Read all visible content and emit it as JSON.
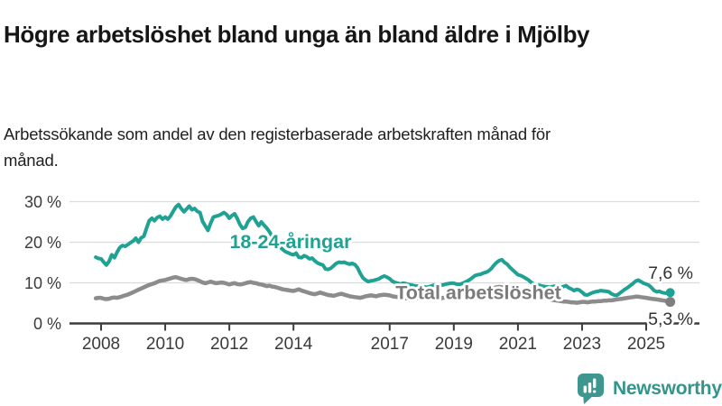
{
  "header": {
    "title": "Högre arbetslöshet bland unga än bland äldre i Mjölby",
    "subtitle": "Arbetssökande som andel av den registerbaserade arbetskraften månad för månad."
  },
  "footer": {
    "brand": "Newsworthy",
    "logo_icon": "bar-chart-speech-bubble-icon"
  },
  "colors": {
    "youth_series": "#1FA294",
    "total_series": "#8C8C8C",
    "total_label": "#7B7B7B",
    "grid": "#DBDBDB",
    "axis": "#3D3D3D",
    "tick_text": "#3A3A3A",
    "value_text": "#333333",
    "brand_teal": "#3E968E"
  },
  "chart_data": {
    "type": "line",
    "title": "Högre arbetslöshet bland unga än bland äldre i Mjölby",
    "subtitle": "Arbetssökande som andel av den registerbaserade arbetskraften månad för månad.",
    "unit": "%",
    "x_start": "2007-11",
    "x_end": "2025-10",
    "x_frequency": "monthly",
    "x_tick_years": [
      2008,
      2010,
      2012,
      2014,
      2017,
      2019,
      2021,
      2023,
      2025
    ],
    "y_tick_values": [
      0,
      10,
      20,
      30
    ],
    "y_tick_labels": [
      "0 %",
      "10 %",
      "20 %",
      "30 %"
    ],
    "ylim": [
      0,
      32
    ],
    "grid": "horizontal",
    "legend": "inline-labels",
    "series": [
      {
        "name": "18-24-åringar",
        "color": "#1FA294",
        "end_label": "7,6 %",
        "end_value": 7.6,
        "values": [
          16.3,
          16.0,
          15.9,
          15.1,
          14.4,
          15.3,
          16.9,
          16.2,
          17.6,
          18.7,
          19.2,
          19.0,
          19.4,
          19.9,
          20.3,
          21.0,
          20.0,
          21.1,
          21.5,
          23.4,
          25.3,
          25.9,
          25.3,
          26.1,
          26.4,
          25.7,
          26.2,
          25.7,
          26.5,
          27.6,
          28.7,
          29.3,
          28.3,
          27.5,
          28.2,
          28.9,
          28.0,
          28.3,
          27.6,
          27.3,
          25.1,
          24.0,
          22.9,
          24.7,
          26.2,
          26.4,
          26.6,
          26.9,
          27.3,
          26.8,
          25.9,
          26.6,
          27.0,
          25.8,
          24.3,
          23.4,
          23.7,
          25.1,
          25.9,
          26.2,
          25.1,
          24.1,
          25.0,
          24.2,
          23.5,
          22.6,
          21.5,
          20.4,
          19.5,
          18.8,
          18.2,
          17.7,
          17.4,
          17.1,
          16.9,
          17.3,
          16.3,
          16.2,
          16.7,
          16.4,
          15.9,
          16.1,
          15.4,
          14.9,
          14.6,
          14.4,
          13.4,
          13.3,
          13.6,
          14.2,
          14.8,
          15.1,
          15.0,
          15.1,
          14.8,
          14.6,
          14.8,
          14.5,
          13.7,
          12.3,
          11.2,
          10.7,
          10.3,
          10.5,
          10.6,
          10.8,
          11.0,
          11.4,
          11.7,
          11.4,
          11.0,
          10.4,
          10.1,
          9.9,
          9.7,
          9.9,
          9.8,
          9.6,
          9.5,
          9.3,
          9.2,
          9.2,
          9.1,
          9.0,
          8.9,
          9.1,
          9.3,
          9.5,
          9.6,
          9.4,
          9.5,
          9.7,
          9.8,
          9.9,
          9.9,
          9.7,
          9.6,
          9.8,
          10.1,
          10.4,
          10.8,
          11.3,
          11.8,
          12.0,
          12.1,
          12.4,
          12.6,
          12.9,
          13.5,
          14.3,
          15.0,
          15.5,
          15.7,
          15.0,
          14.6,
          13.8,
          13.2,
          12.6,
          12.0,
          11.8,
          11.5,
          11.1,
          10.7,
          10.1,
          9.7,
          9.5,
          9.4,
          9.2,
          9.1,
          9.0,
          8.9,
          9.1,
          9.2,
          9.0,
          8.9,
          9.1,
          9.3,
          8.8,
          8.5,
          8.1,
          8.4,
          8.2,
          7.7,
          7.1,
          7.0,
          7.3,
          7.6,
          7.8,
          7.9,
          8.1,
          8.0,
          7.9,
          7.8,
          7.3,
          7.0,
          6.9,
          7.4,
          7.9,
          8.4,
          8.8,
          9.3,
          9.8,
          10.4,
          10.7,
          10.3,
          9.9,
          9.7,
          9.4,
          8.8,
          8.1,
          7.8,
          7.9,
          7.6,
          7.5,
          7.4,
          7.6
        ]
      },
      {
        "name": "Total arbetslöshet",
        "color": "#8C8C8C",
        "end_label": "5,3 %",
        "end_value": 5.3,
        "values": [
          6.2,
          6.3,
          6.3,
          6.1,
          6.0,
          6.1,
          6.3,
          6.4,
          6.3,
          6.5,
          6.7,
          6.9,
          7.1,
          7.4,
          7.7,
          8.0,
          8.3,
          8.6,
          8.9,
          9.2,
          9.5,
          9.7,
          9.9,
          10.2,
          10.5,
          10.6,
          10.7,
          10.9,
          11.1,
          11.3,
          11.4,
          11.2,
          11.0,
          10.8,
          10.7,
          10.9,
          11.0,
          10.9,
          10.7,
          10.4,
          10.1,
          9.9,
          10.1,
          10.3,
          10.1,
          9.9,
          10.0,
          10.1,
          10.0,
          9.8,
          9.6,
          9.8,
          9.9,
          9.7,
          9.6,
          9.7,
          9.9,
          10.1,
          10.2,
          10.0,
          9.9,
          9.7,
          9.6,
          9.4,
          9.2,
          9.3,
          9.1,
          9.0,
          8.8,
          8.6,
          8.4,
          8.3,
          8.2,
          8.1,
          8.0,
          8.2,
          8.4,
          8.1,
          7.9,
          7.7,
          7.5,
          7.3,
          7.2,
          7.4,
          7.6,
          7.4,
          7.2,
          7.0,
          6.9,
          6.8,
          7.0,
          7.2,
          7.3,
          7.1,
          6.9,
          6.7,
          6.6,
          6.5,
          6.4,
          6.3,
          6.5,
          6.7,
          6.8,
          6.9,
          6.8,
          6.7,
          6.9,
          7.0,
          7.1,
          7.0,
          6.9,
          6.7,
          6.6,
          6.5,
          6.4,
          6.3,
          6.2,
          6.2,
          6.3,
          6.4,
          6.3,
          6.2,
          6.2,
          6.1,
          6.0,
          6.1,
          6.2,
          6.3,
          6.2,
          6.2,
          6.3,
          6.4,
          6.3,
          6.3,
          6.3,
          6.4,
          6.4,
          6.5,
          6.6,
          6.7,
          6.8,
          6.9,
          7.0,
          7.1,
          7.2,
          7.4,
          7.6,
          7.9,
          8.3,
          8.7,
          8.9,
          9.0,
          8.9,
          8.8,
          8.6,
          8.4,
          8.2,
          8.1,
          8.0,
          7.9,
          7.8,
          7.6,
          7.4,
          7.2,
          7.0,
          6.8,
          6.6,
          6.4,
          6.2,
          6.0,
          5.9,
          5.8,
          5.7,
          5.6,
          5.5,
          5.4,
          5.4,
          5.3,
          5.2,
          5.2,
          5.1,
          5.2,
          5.3,
          5.3,
          5.2,
          5.3,
          5.4,
          5.4,
          5.5,
          5.5,
          5.6,
          5.6,
          5.7,
          5.7,
          5.8,
          5.9,
          6.0,
          6.1,
          6.2,
          6.3,
          6.4,
          6.5,
          6.6,
          6.6,
          6.5,
          6.4,
          6.3,
          6.2,
          6.1,
          6.0,
          5.9,
          5.8,
          5.7,
          5.6,
          5.4,
          5.3
        ]
      }
    ]
  }
}
